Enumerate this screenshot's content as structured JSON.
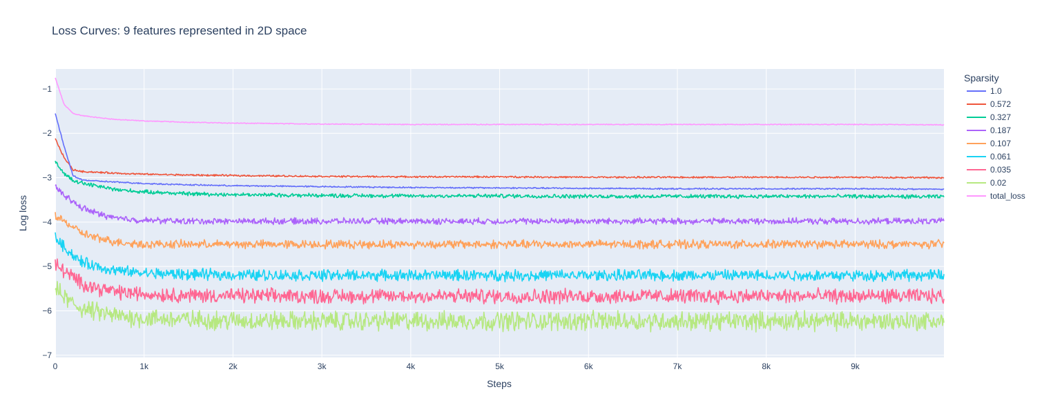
{
  "chart_data": {
    "type": "line",
    "title": "Loss Curves: 9 features represented in 2D space",
    "xlabel": "Steps",
    "ylabel": "Log loss",
    "xlim": [
      0,
      9999
    ],
    "ylim": [
      -7.05,
      -0.55
    ],
    "x_ticks": [
      {
        "value": 0,
        "label": "0"
      },
      {
        "value": 1000,
        "label": "1k"
      },
      {
        "value": 2000,
        "label": "2k"
      },
      {
        "value": 3000,
        "label": "3k"
      },
      {
        "value": 4000,
        "label": "4k"
      },
      {
        "value": 5000,
        "label": "5k"
      },
      {
        "value": 6000,
        "label": "6k"
      },
      {
        "value": 7000,
        "label": "7k"
      },
      {
        "value": 8000,
        "label": "8k"
      },
      {
        "value": 9000,
        "label": "9k"
      }
    ],
    "y_ticks": [
      {
        "value": -1,
        "label": "−1"
      },
      {
        "value": -2,
        "label": "−2"
      },
      {
        "value": -3,
        "label": "−3"
      },
      {
        "value": -4,
        "label": "−4"
      },
      {
        "value": -5,
        "label": "−5"
      },
      {
        "value": -6,
        "label": "−6"
      },
      {
        "value": -7,
        "label": "−7"
      }
    ],
    "grid": true,
    "legend_title": "Sparsity",
    "legend_position": "right",
    "x": [
      0,
      100,
      200,
      300,
      500,
      700,
      1000,
      1500,
      2000,
      3000,
      4000,
      5000,
      6000,
      7000,
      8000,
      9000,
      9999
    ],
    "series": [
      {
        "name": "1.0",
        "color": "#636efa",
        "noise": 0.012,
        "values": [
          -1.55,
          -2.3,
          -2.95,
          -3.05,
          -3.08,
          -3.1,
          -3.13,
          -3.16,
          -3.18,
          -3.2,
          -3.22,
          -3.23,
          -3.24,
          -3.25,
          -3.25,
          -3.25,
          -3.26
        ]
      },
      {
        "name": "0.572",
        "color": "#EF553B",
        "noise": 0.015,
        "values": [
          -2.12,
          -2.55,
          -2.82,
          -2.86,
          -2.88,
          -2.9,
          -2.92,
          -2.94,
          -2.95,
          -2.97,
          -2.98,
          -2.98,
          -2.99,
          -2.99,
          -2.99,
          -2.99,
          -3.0
        ]
      },
      {
        "name": "0.327",
        "color": "#00cc96",
        "noise": 0.035,
        "values": [
          -2.65,
          -2.9,
          -3.05,
          -3.12,
          -3.2,
          -3.27,
          -3.32,
          -3.36,
          -3.38,
          -3.4,
          -3.41,
          -3.41,
          -3.42,
          -3.42,
          -3.42,
          -3.42,
          -3.43
        ]
      },
      {
        "name": "0.187",
        "color": "#ab63fa",
        "noise": 0.055,
        "values": [
          -3.2,
          -3.38,
          -3.55,
          -3.68,
          -3.82,
          -3.92,
          -3.96,
          -3.98,
          -3.98,
          -3.98,
          -3.98,
          -3.98,
          -3.98,
          -3.98,
          -3.98,
          -3.98,
          -3.98
        ]
      },
      {
        "name": "0.107",
        "color": "#FFA15A",
        "noise": 0.075,
        "values": [
          -3.85,
          -3.98,
          -4.12,
          -4.25,
          -4.38,
          -4.45,
          -4.5,
          -4.5,
          -4.5,
          -4.5,
          -4.5,
          -4.5,
          -4.5,
          -4.5,
          -4.5,
          -4.5,
          -4.5
        ]
      },
      {
        "name": "0.061",
        "color": "#19d3f3",
        "noise": 0.1,
        "values": [
          -4.35,
          -4.55,
          -4.75,
          -4.9,
          -5.02,
          -5.1,
          -5.15,
          -5.18,
          -5.19,
          -5.2,
          -5.2,
          -5.2,
          -5.2,
          -5.2,
          -5.2,
          -5.2,
          -5.2
        ]
      },
      {
        "name": "0.035",
        "color": "#FF6692",
        "noise": 0.13,
        "values": [
          -4.95,
          -5.1,
          -5.25,
          -5.38,
          -5.5,
          -5.58,
          -5.62,
          -5.65,
          -5.66,
          -5.67,
          -5.67,
          -5.67,
          -5.67,
          -5.67,
          -5.67,
          -5.67,
          -5.67
        ]
      },
      {
        "name": "0.02",
        "color": "#B6E880",
        "noise": 0.17,
        "values": [
          -5.5,
          -5.7,
          -5.85,
          -5.95,
          -6.05,
          -6.12,
          -6.17,
          -6.2,
          -6.22,
          -6.23,
          -6.23,
          -6.23,
          -6.23,
          -6.23,
          -6.23,
          -6.23,
          -6.23
        ]
      },
      {
        "name": "total_loss",
        "color": "#FF97FF",
        "noise": 0.008,
        "values": [
          -0.75,
          -1.35,
          -1.55,
          -1.6,
          -1.65,
          -1.69,
          -1.72,
          -1.75,
          -1.77,
          -1.79,
          -1.8,
          -1.8,
          -1.8,
          -1.8,
          -1.8,
          -1.8,
          -1.81
        ]
      }
    ]
  },
  "style": {
    "plot_bg": "#e5ecf6",
    "grid_color": "#ffffff",
    "text_color": "#2a3f5f"
  }
}
